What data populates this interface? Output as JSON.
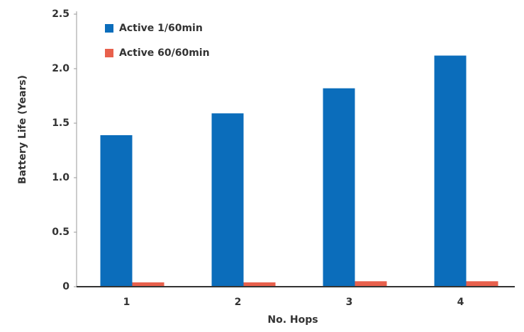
{
  "chart_data": {
    "type": "bar",
    "x_label": "No. Hops",
    "y_label": "Battery Life (Years)",
    "categories": [
      "1",
      "2",
      "3",
      "4"
    ],
    "series": [
      {
        "name": "Active 1/60min",
        "color": "#0b6dbb",
        "values": [
          1.39,
          1.59,
          1.82,
          2.12
        ]
      },
      {
        "name": "Active 60/60min",
        "color": "#e8604c",
        "values": [
          0.04,
          0.04,
          0.05,
          0.05
        ]
      }
    ],
    "ylim": [
      0,
      2.5
    ],
    "yticks": [
      0,
      0.5,
      {
        "value": 1,
        "label": "1.0"
      },
      1.5,
      {
        "value": 2,
        "label": "2.0"
      },
      2.5
    ],
    "legend": "top-left"
  }
}
